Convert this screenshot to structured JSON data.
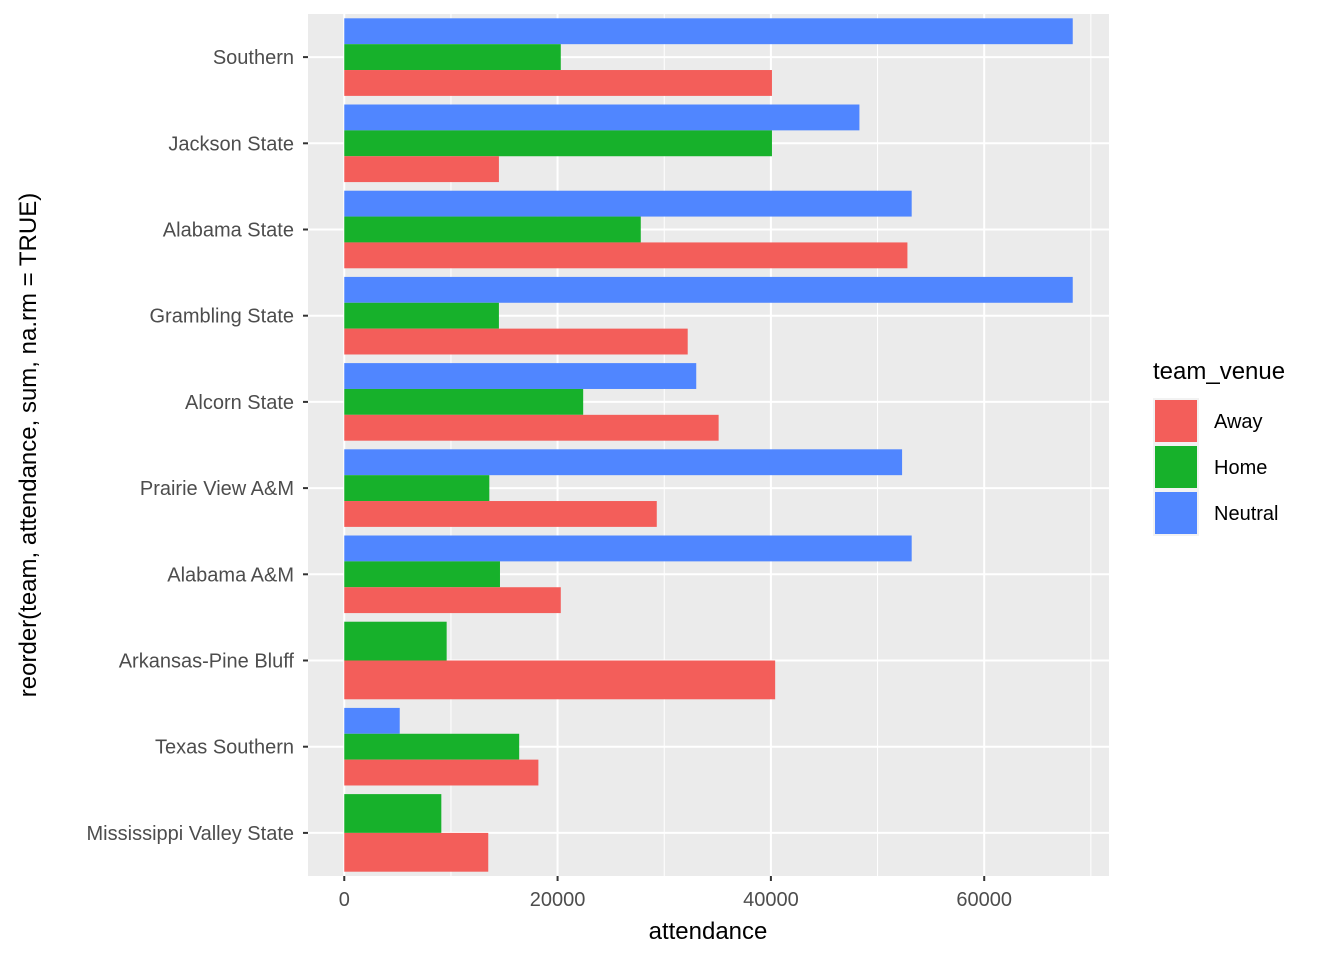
{
  "chart_data": {
    "type": "bar",
    "orientation": "horizontal",
    "xlabel": "attendance",
    "ylabel": "reorder(team, attendance, sum, na.rm = TRUE)",
    "xlim": [
      -3400,
      71700
    ],
    "xticks": [
      0,
      20000,
      40000,
      60000
    ],
    "xtick_labels": [
      "0",
      "20000",
      "40000",
      "60000"
    ],
    "grid": true,
    "legend": {
      "title": "team_venue",
      "position": "right",
      "entries": [
        "Away",
        "Home",
        "Neutral"
      ]
    },
    "colors": {
      "Away": "#F35E5A",
      "Home": "#17B12B",
      "Neutral": "#5086FF"
    },
    "categories": [
      "Southern",
      "Jackson State",
      "Alabama State",
      "Grambling State",
      "Alcorn State",
      "Prairie View A&M",
      "Alabama A&M",
      "Arkansas-Pine Bluff",
      "Texas Southern",
      "Mississippi Valley State"
    ],
    "series": [
      {
        "name": "Away",
        "values": [
          40100,
          14500,
          52800,
          32200,
          35100,
          29300,
          20300,
          40400,
          18200,
          13500
        ]
      },
      {
        "name": "Home",
        "values": [
          20300,
          40100,
          27800,
          14500,
          22400,
          13600,
          14600,
          9600,
          16400,
          9100
        ]
      },
      {
        "name": "Neutral",
        "values": [
          68300,
          48300,
          53200,
          68300,
          33000,
          52300,
          53200,
          null,
          5200,
          null
        ]
      }
    ]
  }
}
